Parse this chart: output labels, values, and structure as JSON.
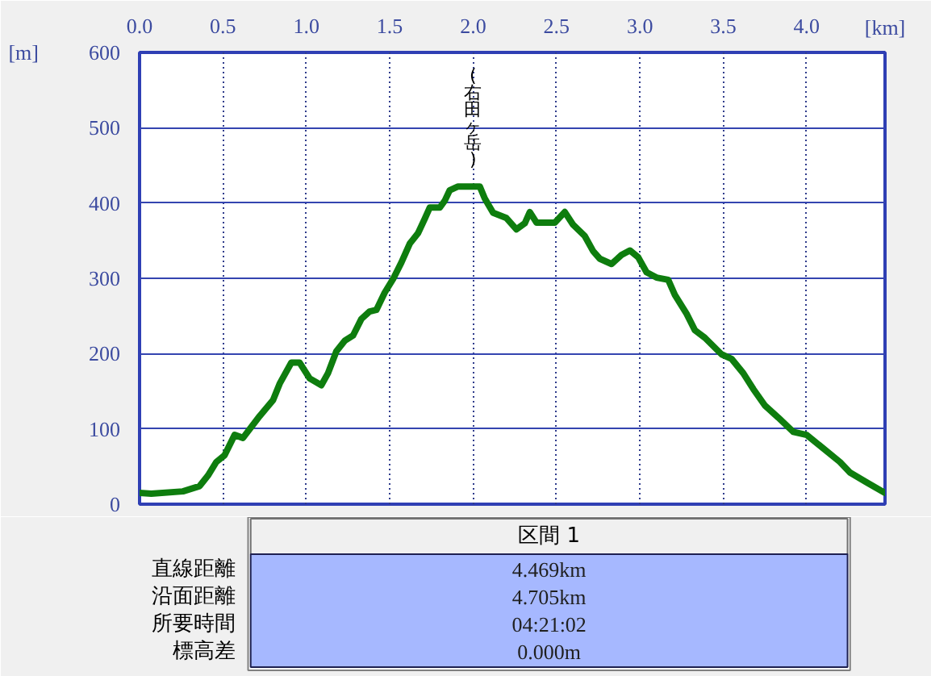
{
  "chart_data": {
    "type": "line",
    "xlabel": "[km]",
    "ylabel": "[m]",
    "x": [
      0,
      0.07,
      0.26,
      0.36,
      0.41,
      0.46,
      0.51,
      0.57,
      0.62,
      0.72,
      0.8,
      0.84,
      0.91,
      0.96,
      1.02,
      1.09,
      1.13,
      1.18,
      1.23,
      1.28,
      1.33,
      1.38,
      1.42,
      1.47,
      1.52,
      1.57,
      1.62,
      1.67,
      1.71,
      1.74,
      1.8,
      1.83,
      1.86,
      1.91,
      2.04,
      2.07,
      2.12,
      2.2,
      2.26,
      2.31,
      2.34,
      2.38,
      2.49,
      2.55,
      2.6,
      2.67,
      2.72,
      2.76,
      2.83,
      2.89,
      2.94,
      2.99,
      3.04,
      3.1,
      3.17,
      3.21,
      3.28,
      3.33,
      3.39,
      3.49,
      3.55,
      3.62,
      3.68,
      3.75,
      3.83,
      3.92,
      4.0,
      4.1,
      4.2,
      4.26,
      4.36,
      4.47
    ],
    "series": [
      {
        "color": "#0e7d0e",
        "values": [
          15,
          14,
          17,
          24,
          38,
          56,
          65,
          92,
          88,
          117,
          138,
          160,
          188,
          188,
          167,
          158,
          174,
          203,
          217,
          224,
          246,
          256,
          258,
          281,
          299,
          321,
          346,
          360,
          379,
          394,
          394,
          403,
          417,
          422,
          422,
          406,
          387,
          380,
          365,
          373,
          388,
          374,
          374,
          388,
          371,
          356,
          336,
          326,
          319,
          331,
          337,
          328,
          308,
          301,
          298,
          278,
          253,
          231,
          221,
          199,
          193,
          174,
          153,
          131,
          115,
          96,
          92,
          74,
          56,
          42,
          29,
          15
        ]
      }
    ],
    "xlim": [
      0,
      4.47
    ],
    "ylim": [
      0,
      600
    ],
    "xticks": [
      {
        "value": 0,
        "label": "0.0"
      },
      0.5,
      {
        "value": 1,
        "label": "1.0"
      },
      1.5,
      {
        "value": 2,
        "label": "2.0"
      },
      2.5,
      {
        "value": 3,
        "label": "3.0"
      },
      3.5,
      {
        "value": 4,
        "label": "4.0"
      }
    ],
    "yticks": [
      0,
      100,
      200,
      300,
      400,
      500,
      600
    ],
    "grid": true,
    "line_style": "solid",
    "annotations": [
      "区間 1",
      "直線距離",
      "4.469km",
      "沿面距離",
      "4.705km",
      "所要時間",
      "04:21:02",
      "標高差",
      "0.000m",
      {
        "text": "(右田ヶ岳)",
        "x": 2.0,
        "y": 422
      }
    ]
  }
}
